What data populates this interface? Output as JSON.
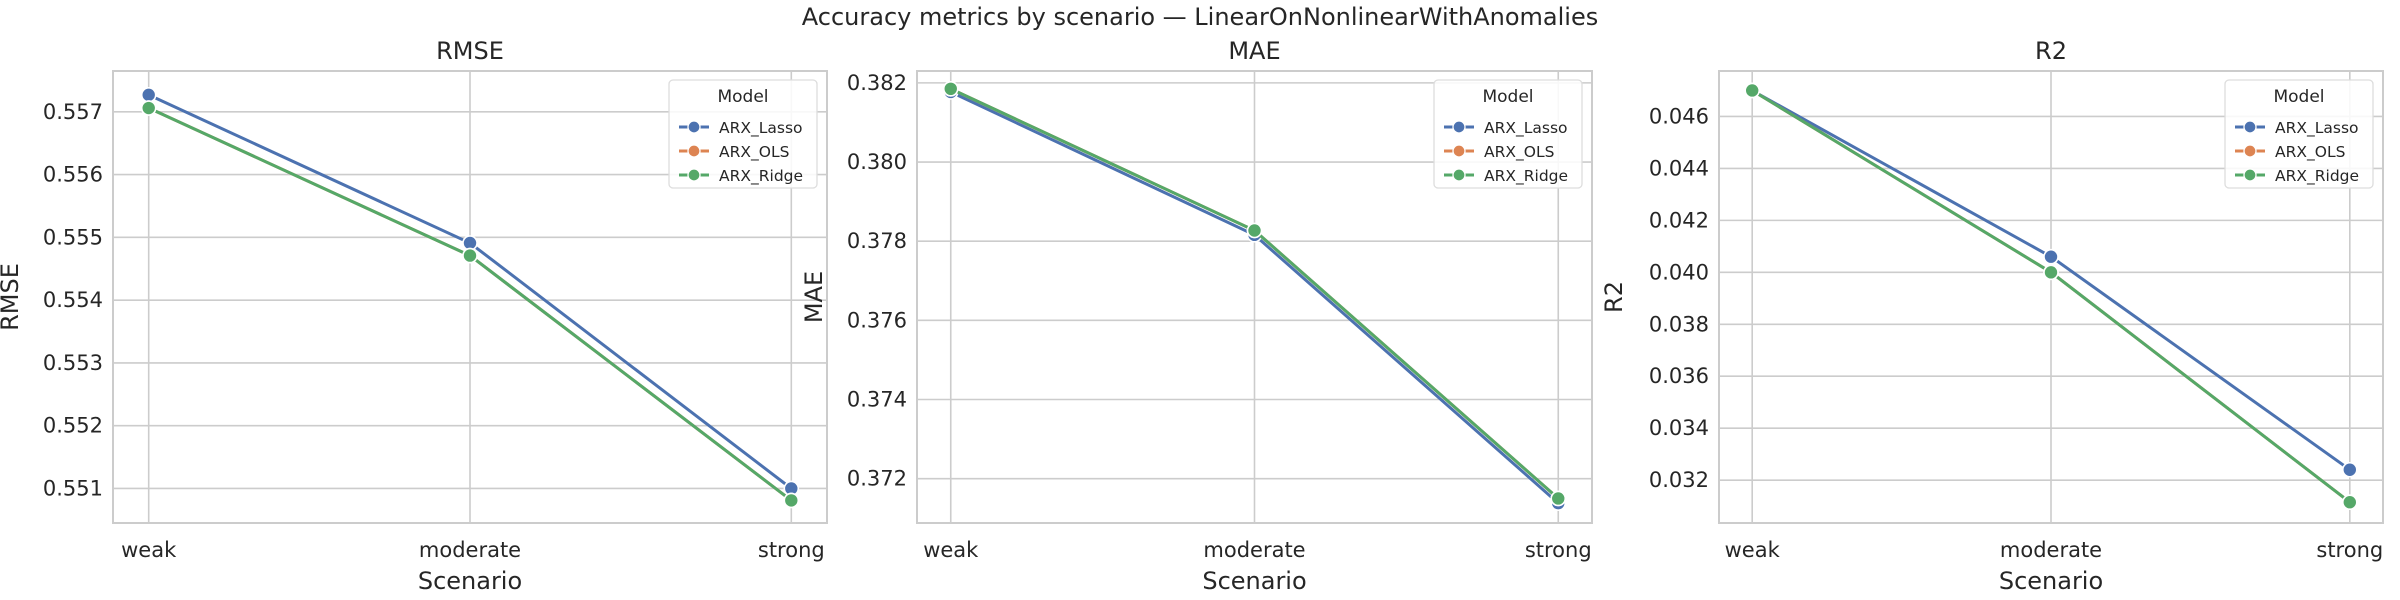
{
  "figure": {
    "title": "Accuracy metrics by scenario — LinearOnNonlinearWithAnomalies",
    "colors": {
      "ARX_Lasso": "#4c72b0",
      "ARX_OLS": "#dd8452",
      "ARX_Ridge": "#55a868"
    }
  },
  "chart_data": [
    {
      "type": "line",
      "title": "RMSE",
      "xlabel": "Scenario",
      "ylabel": "RMSE",
      "categories": [
        "weak",
        "moderate",
        "strong"
      ],
      "ylim": [
        0.55045,
        0.55765
      ],
      "yticks": [
        0.551,
        0.552,
        0.553,
        0.554,
        0.555,
        0.556,
        0.557
      ],
      "ytick_labels": [
        "0.551",
        "0.552",
        "0.553",
        "0.554",
        "0.555",
        "0.556",
        "0.557"
      ],
      "grid": true,
      "legend": {
        "title": "Model",
        "position": "upper right"
      },
      "series": [
        {
          "name": "ARX_Lasso",
          "values": [
            0.55727,
            0.55491,
            0.551
          ]
        },
        {
          "name": "ARX_OLS",
          "values": [
            0.55706,
            0.55471,
            0.55081
          ]
        },
        {
          "name": "ARX_Ridge",
          "values": [
            0.55706,
            0.55471,
            0.55081
          ]
        }
      ]
    },
    {
      "type": "line",
      "title": "MAE",
      "xlabel": "Scenario",
      "ylabel": "MAE",
      "categories": [
        "weak",
        "moderate",
        "strong"
      ],
      "ylim": [
        0.37088,
        0.3823
      ],
      "yticks": [
        0.372,
        0.374,
        0.376,
        0.378,
        0.38,
        0.382
      ],
      "ytick_labels": [
        "0.372",
        "0.374",
        "0.376",
        "0.378",
        "0.380",
        "0.382"
      ],
      "grid": true,
      "legend": {
        "title": "Model",
        "position": "upper right"
      },
      "series": [
        {
          "name": "ARX_Lasso",
          "values": [
            0.38177,
            0.37816,
            0.37138
          ]
        },
        {
          "name": "ARX_OLS",
          "values": [
            0.38185,
            0.37827,
            0.3715
          ]
        },
        {
          "name": "ARX_Ridge",
          "values": [
            0.38185,
            0.37827,
            0.3715
          ]
        }
      ]
    },
    {
      "type": "line",
      "title": "R2",
      "xlabel": "Scenario",
      "ylabel": "R2",
      "categories": [
        "weak",
        "moderate",
        "strong"
      ],
      "ylim": [
        0.03035,
        0.04775
      ],
      "yticks": [
        0.032,
        0.034,
        0.036,
        0.038,
        0.04,
        0.042,
        0.044,
        0.046
      ],
      "ytick_labels": [
        "0.032",
        "0.034",
        "0.036",
        "0.038",
        "0.040",
        "0.042",
        "0.044",
        "0.046"
      ],
      "grid": true,
      "legend": {
        "title": "Model",
        "position": "upper right"
      },
      "series": [
        {
          "name": "ARX_Lasso",
          "values": [
            0.047,
            0.0406,
            0.0324
          ]
        },
        {
          "name": "ARX_OLS",
          "values": [
            0.047,
            0.04,
            0.03115
          ]
        },
        {
          "name": "ARX_Ridge",
          "values": [
            0.047,
            0.04,
            0.03115
          ]
        }
      ]
    }
  ]
}
